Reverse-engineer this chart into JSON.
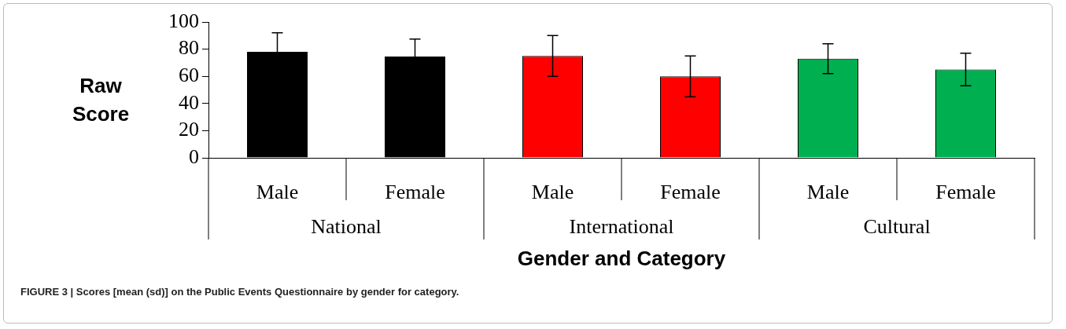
{
  "chart_data": {
    "type": "bar",
    "ylabel": "Raw Score",
    "xlabel": "Gender and Category",
    "categories": [
      "Male",
      "Female",
      "Male",
      "Female",
      "Male",
      "Female"
    ],
    "values": [
      78,
      74.5,
      75,
      60,
      73,
      65
    ],
    "errors": [
      14,
      13,
      15,
      15,
      11,
      12
    ],
    "colors": [
      "#000000",
      "#000000",
      "#ff0000",
      "#ff0000",
      "#00b050",
      "#00b050"
    ],
    "ylim": [
      0,
      100
    ],
    "yticks": [
      0,
      20,
      40,
      60,
      80,
      100
    ],
    "grid": false,
    "legend": false,
    "annotations": [
      "National",
      "International",
      "Cultural",
      "FIGURE 3 | Scores [mean (sd)] on the Public Events Questionnaire by gender for category."
    ]
  }
}
